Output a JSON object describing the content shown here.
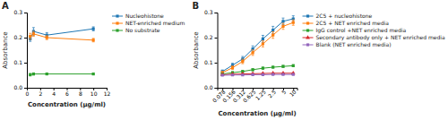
{
  "chart_data": [
    {
      "type": "line",
      "title": "A",
      "x_label": "Concentration (μg/ml)",
      "y_label": "Absorbance",
      "x": [
        0.5,
        1,
        3,
        10
      ],
      "xlim": [
        0,
        12
      ],
      "ylim": [
        0.0,
        0.3
      ],
      "xticks": [
        0,
        2,
        4,
        6,
        8,
        10,
        12
      ],
      "yticks": [
        {
          "value": 0.0,
          "label": "0.0"
        },
        {
          "value": 0.1,
          "label": "0.1"
        },
        {
          "value": 0.2,
          "label": "0.2"
        },
        {
          "value": 0.3,
          "label": "0.3"
        }
      ],
      "legend": "right",
      "series": [
        {
          "name": "Nucleohistone",
          "marker": "square",
          "line_style": "solid",
          "values": [
            0.195,
            0.225,
            0.21,
            0.235
          ],
          "errors": [
            0.01,
            0.015,
            0.01,
            0.008
          ]
        },
        {
          "name": "NET-enriched medium",
          "marker": "square",
          "line_style": "solid",
          "values": [
            0.205,
            0.215,
            0.2,
            0.19
          ],
          "errors": [
            0.012,
            0.01,
            0.008,
            0.007
          ]
        },
        {
          "name": "No substrate",
          "marker": "square",
          "line_style": "solid",
          "values": [
            0.052,
            0.055,
            0.055,
            0.055
          ],
          "errors": [
            0.005,
            0.004,
            0.003,
            0.003
          ]
        }
      ]
    },
    {
      "type": "line",
      "title": "B",
      "x_label": "Concentration (μg/ml)",
      "y_label": "Absorbance",
      "log": "x",
      "x": [
        0.078,
        0.156,
        0.312,
        0.625,
        1.25,
        2.5,
        5,
        10
      ],
      "xlim": [
        0.055,
        13
      ],
      "ylim": [
        0.0,
        0.3
      ],
      "xticks": [
        0.078,
        0.156,
        0.312,
        0.625,
        1.25,
        2.5,
        5,
        10
      ],
      "yticks": [
        {
          "value": 0.0,
          "label": "0.0"
        },
        {
          "value": 0.1,
          "label": "0.1"
        },
        {
          "value": 0.2,
          "label": "0.2"
        },
        {
          "value": 0.3,
          "label": "0.3"
        }
      ],
      "legend": "right",
      "series": [
        {
          "name": "2C5 + nucleohistone",
          "marker": "square",
          "line_style": "solid",
          "values": [
            0.065,
            0.09,
            0.115,
            0.155,
            0.195,
            0.23,
            0.265,
            0.275
          ],
          "errors": [
            0.006,
            0.008,
            0.01,
            0.012,
            0.014,
            0.015,
            0.013,
            0.012
          ]
        },
        {
          "name": "2C5 + NET enriched media",
          "marker": "square",
          "line_style": "solid",
          "values": [
            0.06,
            0.08,
            0.105,
            0.14,
            0.175,
            0.21,
            0.245,
            0.26
          ],
          "errors": [
            0.005,
            0.007,
            0.009,
            0.011,
            0.012,
            0.013,
            0.012,
            0.011
          ]
        },
        {
          "name": "IgG control +NET enriched media",
          "marker": "square",
          "line_style": "solid",
          "values": [
            0.055,
            0.06,
            0.065,
            0.072,
            0.078,
            0.082,
            0.085,
            0.088
          ],
          "errors": [
            0.004,
            0.004,
            0.004,
            0.004,
            0.004,
            0.004,
            0.004,
            0.004
          ]
        },
        {
          "name": "Secondary antibody only + NET enriched media",
          "marker": "triangle",
          "line_style": "solid",
          "values": [
            0.052,
            0.054,
            0.055,
            0.056,
            0.057,
            0.058,
            0.058,
            0.058
          ],
          "errors": [
            0.002,
            0.002,
            0.002,
            0.002,
            0.002,
            0.002,
            0.002,
            0.002
          ]
        },
        {
          "name": "Blank (NET enriched media)",
          "marker": "square",
          "line_style": "solid",
          "values": [
            0.05,
            0.051,
            0.051,
            0.052,
            0.052,
            0.053,
            0.053,
            0.053
          ],
          "errors": [
            0.001,
            0.001,
            0.001,
            0.001,
            0.001,
            0.001,
            0.001,
            0.001
          ]
        }
      ]
    }
  ]
}
